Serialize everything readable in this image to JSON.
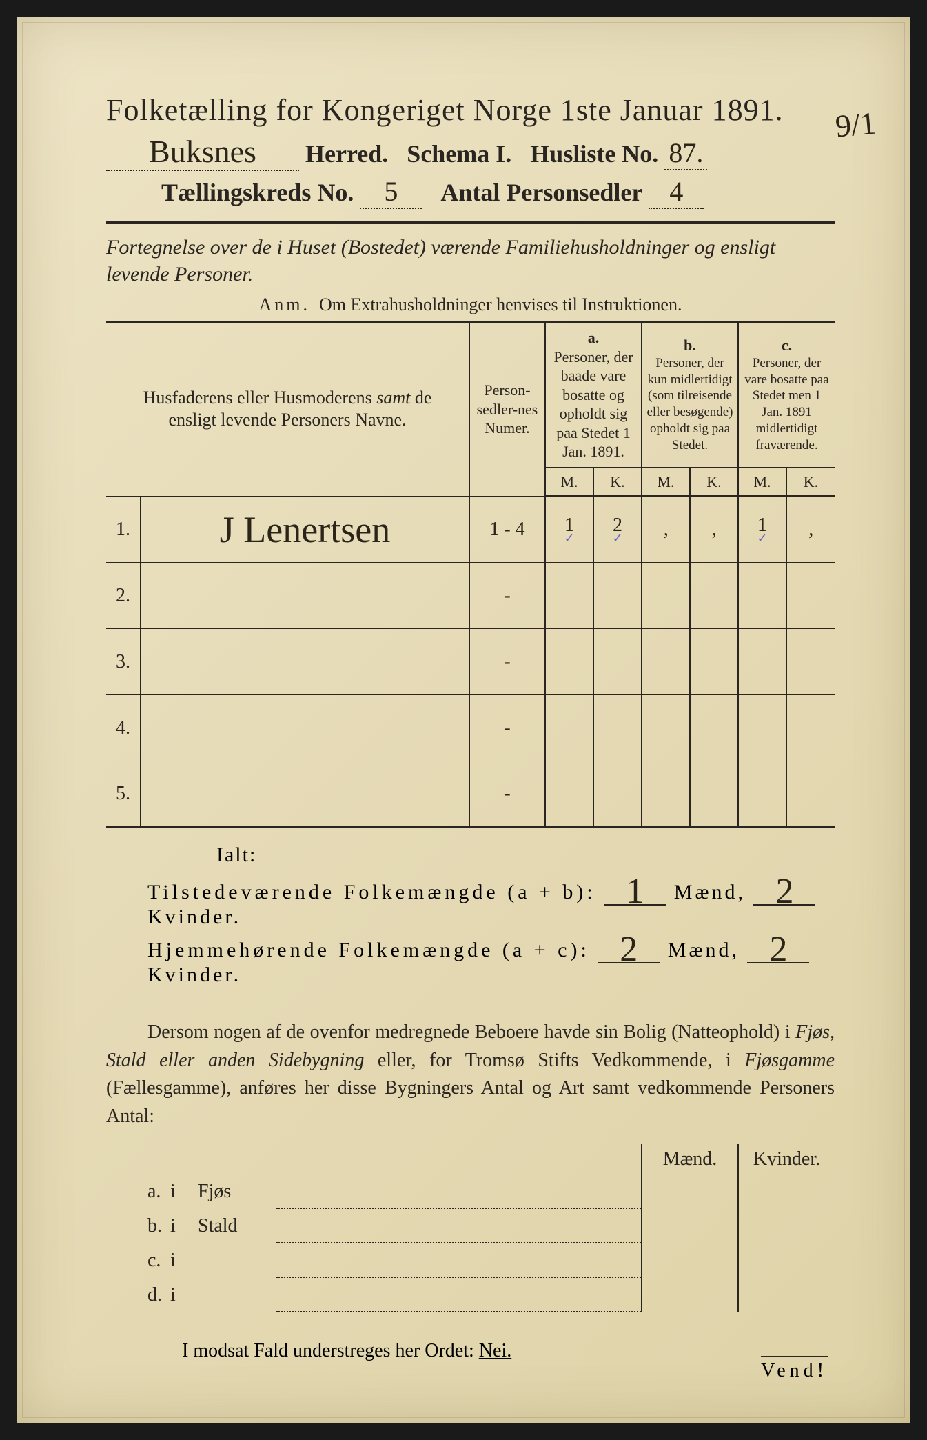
{
  "pageBackground": "#e8dfc0",
  "inkColor": "#2a2520",
  "handwritingColor": "#2b2418",
  "tickColor": "#6b5fc7",
  "corner_note": "9/1",
  "header": {
    "title": "Folketælling for Kongeriget Norge 1ste Januar 1891.",
    "herred_hand": "Buksnes",
    "herred_label": "Herred.",
    "schema_label": "Schema I.",
    "husliste_label": "Husliste No.",
    "husliste_no": "87.",
    "kreds_label": "Tællingskreds No.",
    "kreds_no": "5",
    "personsedler_label": "Antal Personsedler",
    "personsedler_no": "4"
  },
  "subtitle": "Fortegnelse over de i Huset (Bostedet) værende Familiehusholdninger og ensligt levende Personer.",
  "anm": {
    "prefix": "Anm.",
    "text": "Om Extrahusholdninger henvises til Instruktionen."
  },
  "table": {
    "col_name": "Husfaderens eller Husmoderens samt de ensligt levende Personers Navne.",
    "col_numer": "Person-sedler-nes Numer.",
    "col_a_head": "a.",
    "col_a": "Personer, der baade vare bosatte og opholdt sig paa Stedet 1 Jan. 1891.",
    "col_b_head": "b.",
    "col_b": "Personer, der kun midlertidigt (som tilreisende eller besøgende) opholdt sig paa Stedet.",
    "col_c_head": "c.",
    "col_c": "Personer, der vare bosatte paa Stedet men 1 Jan. 1891 midlertidigt fraværende.",
    "mk_m": "M.",
    "mk_k": "K.",
    "rows": [
      {
        "num": "1.",
        "name": "J Lenertsen",
        "numer": "1 - 4",
        "a_m": "1",
        "a_k": "2",
        "b_m": "‚",
        "b_k": "‚",
        "c_m": "1",
        "c_k": "‚",
        "ticks": true
      },
      {
        "num": "2.",
        "name": "",
        "numer": "-",
        "a_m": "",
        "a_k": "",
        "b_m": "",
        "b_k": "",
        "c_m": "",
        "c_k": ""
      },
      {
        "num": "3.",
        "name": "",
        "numer": "-",
        "a_m": "",
        "a_k": "",
        "b_m": "",
        "b_k": "",
        "c_m": "",
        "c_k": ""
      },
      {
        "num": "4.",
        "name": "",
        "numer": "-",
        "a_m": "",
        "a_k": "",
        "b_m": "",
        "b_k": "",
        "c_m": "",
        "c_k": ""
      },
      {
        "num": "5.",
        "name": "",
        "numer": "-",
        "a_m": "",
        "a_k": "",
        "b_m": "",
        "b_k": "",
        "c_m": "",
        "c_k": ""
      }
    ]
  },
  "totals": {
    "ialt": "Ialt:",
    "line1_label": "Tilstedeværende Folkemængde (a + b):",
    "line1_m": "1",
    "line1_k": "2",
    "line2_label": "Hjemmehørende Folkemængde (a + c):",
    "line2_m": "2",
    "line2_k": "2",
    "maend": "Mænd,",
    "kvinder": "Kvinder."
  },
  "paragraph": "Dersom nogen af de ovenfor medregnede Beboere havde sin Bolig (Natteophold) i Fjøs, Stald eller anden Sidebygning eller, for Tromsø Stifts Vedkommende, i Fjøsgamme (Fællesgamme), anføres her disse Bygningers Antal og Art samt vedkommende Personers Antal:",
  "bygning": {
    "head_m": "Mænd.",
    "head_k": "Kvinder.",
    "rows": [
      {
        "l": "a.",
        "i": "i",
        "label": "Fjøs"
      },
      {
        "l": "b.",
        "i": "i",
        "label": "Stald"
      },
      {
        "l": "c.",
        "i": "i",
        "label": ""
      },
      {
        "l": "d.",
        "i": "i",
        "label": ""
      }
    ]
  },
  "modsat": {
    "text": "I modsat Fald understreges her Ordet:",
    "nei": "Nei."
  },
  "vend": "Vend!"
}
